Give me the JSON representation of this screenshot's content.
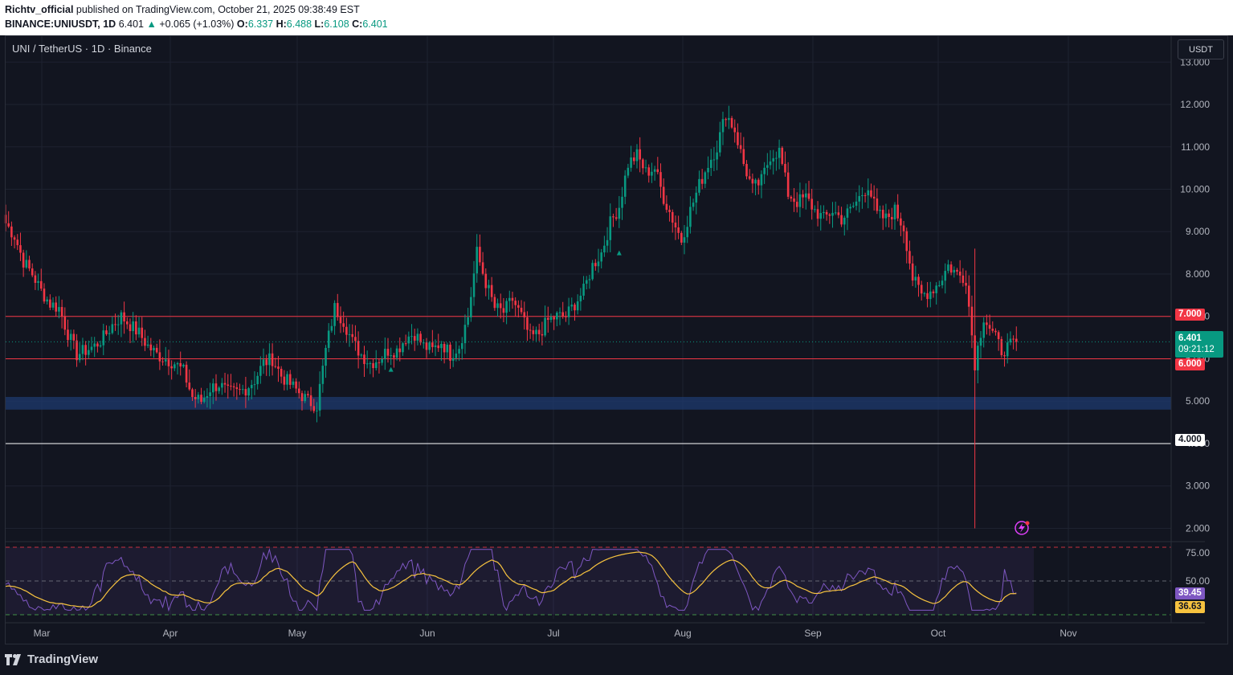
{
  "header": {
    "author": "Richtv_official",
    "published_text": "published on TradingView.com, October 21, 2025 09:38:49 EST",
    "symbol": "BINANCE:UNIUSDT, 1D",
    "last": "6.401",
    "arrow": "▲",
    "change": "+0.065 (+1.03%)",
    "o_label": "O:",
    "o_value": "6.337",
    "h_label": "H:",
    "h_value": "6.488",
    "l_label": "L:",
    "l_value": "6.108",
    "c_label": "C:",
    "c_value": "6.401"
  },
  "chart": {
    "title": "UNI / TetherUS · 1D · Binance",
    "currency": "USDT",
    "countdown": "09:21:12",
    "current_price_label": "6.401",
    "brand": "TradingView"
  },
  "colors": {
    "bg": "#121520",
    "up": "#089981",
    "down": "#f23645",
    "grid": "#1e2230",
    "hline_red": "#f23645",
    "rsi_line": "#7e57c2",
    "rsi_ma": "#f7c33f",
    "zone": "#1e3a6e"
  },
  "chart_data": {
    "type": "candlestick",
    "title": "UNI / TetherUS · 1D · Binance",
    "price_axis": {
      "ticks": [
        "13.000",
        "12.000",
        "11.000",
        "10.000",
        "9.000",
        "8.000",
        "7.000",
        "6.000",
        "5.000",
        "4.000",
        "3.000",
        "2.000"
      ],
      "min": 1.8,
      "max": 13.1
    },
    "time_axis": {
      "ticks": [
        "Mar",
        "Apr",
        "May",
        "Jun",
        "Jul",
        "Aug",
        "Sep",
        "Oct",
        "Nov"
      ]
    },
    "key_levels": [
      {
        "price": 7.0,
        "label": "7.000",
        "style": "red"
      },
      {
        "price": 6.0,
        "label": "6.000",
        "style": "red"
      },
      {
        "price": 4.0,
        "label": "4.000",
        "style": "white"
      }
    ],
    "support_zone": {
      "low": 4.8,
      "high": 5.1,
      "label": "5.000"
    },
    "last_price": 6.401,
    "anchors": [
      [
        0,
        9.2
      ],
      [
        3,
        8.9
      ],
      [
        6,
        8.3
      ],
      [
        9,
        8.0
      ],
      [
        12,
        7.6
      ],
      [
        15,
        7.3
      ],
      [
        18,
        7.2
      ],
      [
        21,
        6.6
      ],
      [
        24,
        6.1
      ],
      [
        27,
        6.2
      ],
      [
        30,
        6.3
      ],
      [
        33,
        6.5
      ],
      [
        36,
        6.8
      ],
      [
        39,
        7.0
      ],
      [
        42,
        6.8
      ],
      [
        45,
        6.6
      ],
      [
        48,
        6.3
      ],
      [
        51,
        6.1
      ],
      [
        54,
        6.0
      ],
      [
        57,
        5.9
      ],
      [
        60,
        5.7
      ],
      [
        63,
        5.1
      ],
      [
        66,
        5.0
      ],
      [
        69,
        5.3
      ],
      [
        72,
        5.4
      ],
      [
        75,
        5.2
      ],
      [
        78,
        5.2
      ],
      [
        81,
        5.3
      ],
      [
        84,
        5.5
      ],
      [
        87,
        5.9
      ],
      [
        90,
        6.0
      ],
      [
        93,
        5.6
      ],
      [
        96,
        5.4
      ],
      [
        99,
        5.2
      ],
      [
        102,
        5.0
      ],
      [
        105,
        4.9
      ],
      [
        108,
        6.2
      ],
      [
        111,
        7.2
      ],
      [
        114,
        6.9
      ],
      [
        117,
        6.4
      ],
      [
        120,
        6.1
      ],
      [
        123,
        5.9
      ],
      [
        126,
        6.0
      ],
      [
        129,
        6.2
      ],
      [
        132,
        6.2
      ],
      [
        135,
        6.5
      ],
      [
        138,
        6.6
      ],
      [
        141,
        6.3
      ],
      [
        144,
        6.2
      ],
      [
        147,
        6.4
      ],
      [
        150,
        6.1
      ],
      [
        153,
        6.3
      ],
      [
        156,
        7.0
      ],
      [
        159,
        8.5
      ],
      [
        162,
        7.8
      ],
      [
        165,
        7.2
      ],
      [
        168,
        7.1
      ],
      [
        171,
        7.4
      ],
      [
        174,
        7.0
      ],
      [
        177,
        6.5
      ],
      [
        180,
        6.6
      ],
      [
        183,
        6.9
      ],
      [
        186,
        7.0
      ],
      [
        189,
        7.0
      ],
      [
        192,
        7.3
      ],
      [
        195,
        7.6
      ],
      [
        198,
        8.2
      ],
      [
        201,
        8.5
      ],
      [
        204,
        9.2
      ],
      [
        207,
        9.6
      ],
      [
        210,
        10.6
      ],
      [
        213,
        10.8
      ],
      [
        216,
        10.4
      ],
      [
        219,
        10.5
      ],
      [
        222,
        9.8
      ],
      [
        225,
        9.3
      ],
      [
        228,
        8.8
      ],
      [
        231,
        9.5
      ],
      [
        234,
        10.1
      ],
      [
        237,
        10.6
      ],
      [
        240,
        11.0
      ],
      [
        243,
        11.8
      ],
      [
        246,
        11.4
      ],
      [
        249,
        10.6
      ],
      [
        252,
        10.0
      ],
      [
        255,
        10.2
      ],
      [
        258,
        10.8
      ],
      [
        261,
        10.9
      ],
      [
        264,
        9.9
      ],
      [
        267,
        9.7
      ],
      [
        270,
        9.8
      ],
      [
        273,
        9.5
      ],
      [
        276,
        9.3
      ],
      [
        279,
        9.5
      ],
      [
        282,
        9.3
      ],
      [
        285,
        9.5
      ],
      [
        288,
        9.8
      ],
      [
        291,
        10.1
      ],
      [
        294,
        9.4
      ],
      [
        297,
        9.3
      ],
      [
        300,
        9.5
      ],
      [
        303,
        9.1
      ],
      [
        306,
        7.9
      ],
      [
        309,
        7.5
      ],
      [
        312,
        7.6
      ],
      [
        315,
        7.8
      ],
      [
        318,
        8.2
      ],
      [
        321,
        8.0
      ],
      [
        324,
        7.9
      ],
      [
        327,
        5.9
      ],
      [
        330,
        7.0
      ],
      [
        333,
        6.6
      ],
      [
        336,
        6.2
      ],
      [
        339,
        6.3
      ],
      [
        341,
        6.4
      ]
    ],
    "rsi": {
      "axis_ticks": [
        "75.00",
        "50.00"
      ],
      "upper": 80,
      "middle": 50,
      "lower": 20,
      "value_label": "39.45",
      "ma_label": "36.63",
      "rsi_value": 39.45,
      "ma_value": 36.63
    }
  }
}
